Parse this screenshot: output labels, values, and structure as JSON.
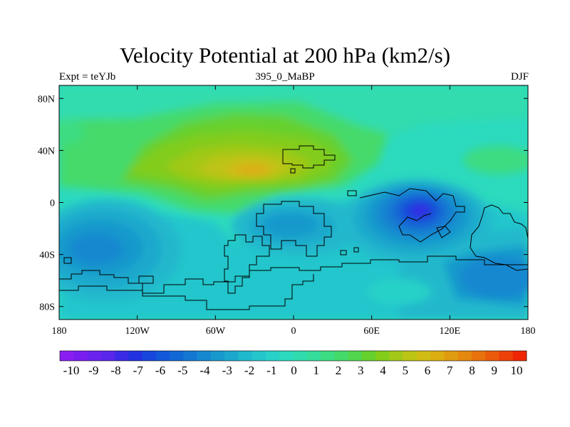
{
  "chart_data": {
    "type": "heatmap",
    "title": "Velocity Potential at 200 hPa (km2/s)",
    "subtitle_left": "Expt = teYJb",
    "subtitle_center": "395_0_MaBP",
    "subtitle_right": "DJF",
    "x_range": [
      -180,
      180
    ],
    "y_range": [
      -90,
      90
    ],
    "x_ticks": [
      {
        "value": -180,
        "label": "180"
      },
      {
        "value": -120,
        "label": "120W"
      },
      {
        "value": -60,
        "label": "60W"
      },
      {
        "value": 0,
        "label": "0"
      },
      {
        "value": 60,
        "label": "60E"
      },
      {
        "value": 120,
        "label": "120E"
      },
      {
        "value": 180,
        "label": "180"
      }
    ],
    "y_ticks": [
      {
        "value": 80,
        "label": "80N"
      },
      {
        "value": 40,
        "label": "40N"
      },
      {
        "value": 0,
        "label": "0"
      },
      {
        "value": -40,
        "label": "40S"
      },
      {
        "value": -80,
        "label": "80S"
      }
    ],
    "colorbar": {
      "labels": [
        "-10",
        "-9",
        "-8",
        "-7",
        "-6",
        "-5",
        "-4",
        "-3",
        "-2",
        "-1",
        "0",
        "1",
        "2",
        "3",
        "4",
        "5",
        "6",
        "7",
        "8",
        "9",
        "10"
      ],
      "colors": [
        "#8a1ef0",
        "#7a1ef0",
        "#6a22ee",
        "#5a26ea",
        "#3a2ae6",
        "#2232e0",
        "#1646dc",
        "#1258d8",
        "#1268d4",
        "#1478d2",
        "#1688d0",
        "#1898cc",
        "#1ca8cc",
        "#20b8cc",
        "#24c6cc",
        "#28d2c8",
        "#2cdabe",
        "#30dcae",
        "#36dc9a",
        "#3cdc82",
        "#44da6a",
        "#52d64e",
        "#66d02e",
        "#82cc1a",
        "#a2c818",
        "#bcc416",
        "#d0bc14",
        "#dcae12",
        "#e09c10",
        "#e4880e",
        "#e8720c",
        "#ea5a0a",
        "#ec4008",
        "#ee2606"
      ]
    },
    "extremes": [
      {
        "label": "max",
        "lon": -30,
        "lat": 25,
        "value": 5.5
      },
      {
        "label": "min",
        "lon": 95,
        "lat": -8,
        "value": -7
      }
    ]
  }
}
